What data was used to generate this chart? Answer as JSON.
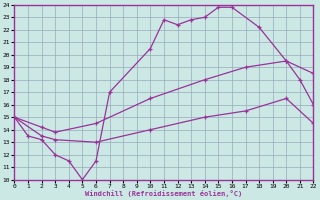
{
  "xlabel": "Windchill (Refroidissement éolien,°C)",
  "bg_color": "#cce8e4",
  "line_color": "#993399",
  "grid_color": "#99aabb",
  "xlim": [
    0,
    22
  ],
  "ylim": [
    10,
    24
  ],
  "xticks": [
    0,
    1,
    2,
    3,
    4,
    5,
    6,
    7,
    8,
    9,
    10,
    11,
    12,
    13,
    14,
    15,
    16,
    17,
    18,
    19,
    20,
    21,
    22
  ],
  "yticks": [
    10,
    11,
    12,
    13,
    14,
    15,
    16,
    17,
    18,
    19,
    20,
    21,
    22,
    23,
    24
  ],
  "curve1_x": [
    0,
    1,
    2,
    3,
    4,
    5,
    6,
    7,
    10,
    11,
    12,
    13,
    14,
    15,
    16,
    18,
    20,
    21,
    22
  ],
  "curve1_y": [
    15,
    13.5,
    13.2,
    12.0,
    11.5,
    10.0,
    11.5,
    17.0,
    20.5,
    22.8,
    22.4,
    22.8,
    23.0,
    23.8,
    23.8,
    22.2,
    19.5,
    18.0,
    16.0
  ],
  "curve2_x": [
    0,
    2,
    3,
    6,
    10,
    14,
    17,
    20,
    22
  ],
  "curve2_y": [
    15.0,
    14.2,
    13.8,
    14.5,
    16.5,
    18.0,
    19.0,
    19.5,
    18.5
  ],
  "curve3_x": [
    0,
    2,
    3,
    6,
    10,
    14,
    17,
    20,
    22
  ],
  "curve3_y": [
    15.0,
    13.5,
    13.2,
    13.0,
    14.0,
    15.0,
    15.5,
    16.5,
    14.5
  ]
}
